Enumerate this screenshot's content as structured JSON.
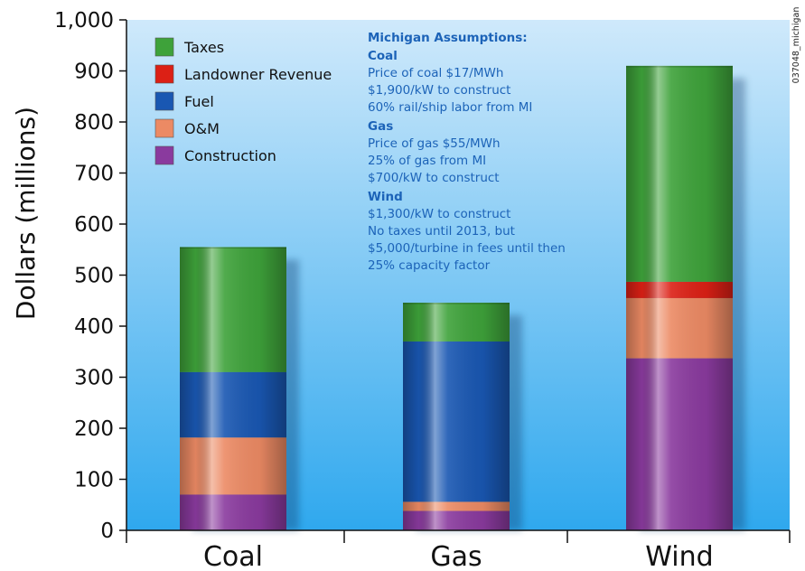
{
  "chart_data": {
    "type": "bar",
    "stacked": true,
    "ylabel": "Dollars (millions)",
    "ylim": [
      0,
      1000
    ],
    "yticks": [
      "0",
      "100",
      "200",
      "300",
      "400",
      "500",
      "600",
      "700",
      "800",
      "900",
      "1,000"
    ],
    "categories": [
      "Coal",
      "Gas",
      "Wind"
    ],
    "series": [
      {
        "name": "Construction",
        "color": "#8a3a9e",
        "values": [
          70,
          38,
          337
        ]
      },
      {
        "name": "O&M",
        "color": "#ec8a64",
        "values": [
          112,
          18,
          118
        ]
      },
      {
        "name": "Fuel",
        "color": "#1957b2",
        "values": [
          128,
          314,
          0
        ]
      },
      {
        "name": "Landowner Revenue",
        "color": "#dc2015",
        "values": [
          0,
          0,
          32
        ]
      },
      {
        "name": "Taxes",
        "color": "#3ea23a",
        "values": [
          245,
          76,
          423
        ]
      }
    ],
    "legend": {
      "position": "top-left",
      "entries": [
        "Taxes",
        "Landowner Revenue",
        "Fuel",
        "O&M",
        "Construction"
      ]
    },
    "annotation": {
      "title": "Michigan Assumptions:",
      "sections": [
        {
          "heading": "Coal",
          "lines": [
            "Price of coal $17/MWh",
            "$1,900/kW to construct",
            "60% rail/ship labor from MI"
          ]
        },
        {
          "heading": "Gas",
          "lines": [
            "Price of gas $55/MWh",
            "25% of gas from MI",
            "$700/kW to construct"
          ]
        },
        {
          "heading": "Wind",
          "lines": [
            "$1,300/kW to construct",
            "No taxes until 2013, but",
            "$5,000/turbine in fees until then",
            "25% capacity factor"
          ]
        }
      ]
    },
    "side_tag": "037048_michigan",
    "grid": false,
    "background_gradient": [
      "#cfe9fb",
      "#2fa8ee"
    ]
  }
}
